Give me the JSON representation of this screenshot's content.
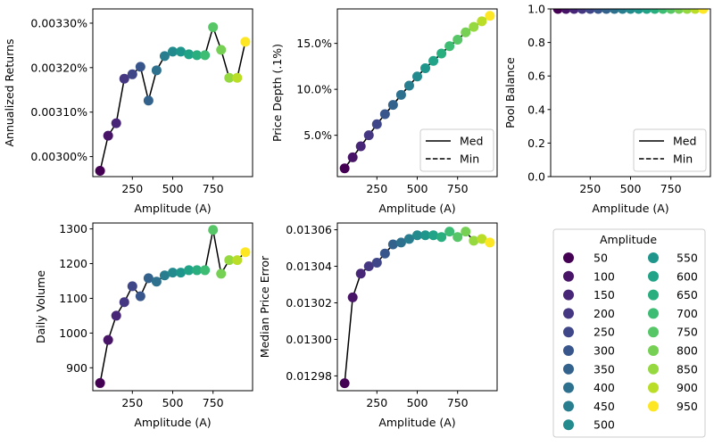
{
  "figure": {
    "legend": {
      "title": "Amplitude",
      "entries": [
        "50",
        "100",
        "150",
        "200",
        "250",
        "300",
        "350",
        "400",
        "450",
        "500",
        "550",
        "600",
        "650",
        "700",
        "750",
        "800",
        "850",
        "900",
        "950"
      ],
      "placement": "bottom-right panel"
    },
    "line_legend": {
      "med_label": "Med",
      "min_label": "Min"
    }
  },
  "chart_data": [
    {
      "type": "line",
      "title": "",
      "xlabel": "Amplitude (A)",
      "ylabel": "Annualized Returns",
      "x": [
        50,
        100,
        150,
        200,
        250,
        300,
        350,
        400,
        450,
        500,
        550,
        600,
        650,
        700,
        750,
        800,
        850,
        900,
        950
      ],
      "series": [
        {
          "name": "Med",
          "values": [
            0.002968,
            0.003047,
            0.003075,
            0.003175,
            0.003185,
            0.003202,
            0.003126,
            0.003194,
            0.003226,
            0.003236,
            0.003236,
            0.00323,
            0.003228,
            0.003228,
            0.003291,
            0.00324,
            0.003177,
            0.003177,
            0.003258
          ]
        }
      ],
      "xlim": [
        5,
        995
      ],
      "ylim": [
        0.002955,
        0.003332
      ],
      "xticks": [
        250,
        500,
        750
      ],
      "xtick_labels": [
        "250",
        "500",
        "750"
      ],
      "yticks": [
        0.003,
        0.0031,
        0.0032,
        0.0033
      ],
      "ytick_labels": [
        "0.00300%",
        "0.00310%",
        "0.00320%",
        "0.00330%"
      ],
      "legend": null,
      "grid": false
    },
    {
      "type": "line",
      "title": "",
      "xlabel": "Amplitude (A)",
      "ylabel": "Price Depth (.1%)",
      "x": [
        50,
        100,
        150,
        200,
        250,
        300,
        350,
        400,
        450,
        500,
        550,
        600,
        650,
        700,
        750,
        800,
        850,
        900,
        950
      ],
      "series": [
        {
          "name": "Med",
          "style": "solid",
          "values": [
            1.4,
            2.6,
            3.8,
            5.0,
            6.2,
            7.3,
            8.3,
            9.4,
            10.4,
            11.4,
            12.3,
            13.1,
            13.9,
            14.7,
            15.4,
            16.2,
            16.8,
            17.4,
            18.0
          ]
        },
        {
          "name": "Min",
          "style": "dashed",
          "values": [
            1.4,
            2.6,
            3.8,
            5.0,
            6.2,
            7.3,
            8.3,
            9.4,
            10.4,
            11.4,
            12.3,
            13.1,
            13.9,
            14.7,
            15.4,
            16.2,
            16.8,
            17.4,
            18.0
          ]
        }
      ],
      "xlim": [
        5,
        995
      ],
      "ylim": [
        0.5,
        18.75
      ],
      "xticks": [
        250,
        500,
        750
      ],
      "xtick_labels": [
        "250",
        "500",
        "750"
      ],
      "yticks": [
        5,
        10,
        15
      ],
      "ytick_labels": [
        "5.0%",
        "10.0%",
        "15.0%"
      ],
      "legend": "lower-right",
      "grid": false
    },
    {
      "type": "line",
      "title": "",
      "xlabel": "Amplitude (A)",
      "ylabel": "Pool Balance",
      "x": [
        50,
        100,
        150,
        200,
        250,
        300,
        350,
        400,
        450,
        500,
        550,
        600,
        650,
        700,
        750,
        800,
        850,
        900,
        950
      ],
      "series": [
        {
          "name": "Med",
          "style": "solid",
          "values": [
            1,
            1,
            1,
            1,
            1,
            1,
            1,
            1,
            1,
            1,
            1,
            1,
            1,
            1,
            1,
            1,
            1,
            1,
            1
          ]
        },
        {
          "name": "Min",
          "style": "dashed",
          "values": [
            1,
            1,
            1,
            1,
            1,
            1,
            1,
            1,
            1,
            1,
            1,
            1,
            1,
            1,
            1,
            1,
            1,
            1,
            1
          ]
        }
      ],
      "xlim": [
        5,
        995
      ],
      "ylim": [
        0,
        1
      ],
      "xticks": [
        250,
        500,
        750
      ],
      "xtick_labels": [
        "250",
        "500",
        "750"
      ],
      "yticks": [
        0,
        0.2,
        0.4,
        0.6,
        0.8,
        1.0
      ],
      "ytick_labels": [
        "0.0",
        "0.2",
        "0.4",
        "0.6",
        "0.8",
        "1.0"
      ],
      "legend": "lower-right",
      "grid": false
    },
    {
      "type": "line",
      "title": "",
      "xlabel": "Amplitude (A)",
      "ylabel": "Daily Volume",
      "x": [
        50,
        100,
        150,
        200,
        250,
        300,
        350,
        400,
        450,
        500,
        550,
        600,
        650,
        700,
        750,
        800,
        850,
        900,
        950
      ],
      "series": [
        {
          "name": "Med",
          "values": [
            856,
            980,
            1050,
            1089,
            1135,
            1106,
            1158,
            1148,
            1166,
            1174,
            1174,
            1181,
            1181,
            1181,
            1297,
            1171,
            1210,
            1210,
            1233
          ]
        }
      ],
      "xlim": [
        5,
        995
      ],
      "ylim": [
        834,
        1317
      ],
      "xticks": [
        250,
        500,
        750
      ],
      "xtick_labels": [
        "250",
        "500",
        "750"
      ],
      "yticks": [
        900,
        1000,
        1100,
        1200,
        1300
      ],
      "ytick_labels": [
        "900",
        "1000",
        "1100",
        "1200",
        "1300"
      ],
      "legend": null,
      "grid": false
    },
    {
      "type": "line",
      "title": "",
      "xlabel": "Amplitude (A)",
      "ylabel": "Median Price Error",
      "x": [
        50,
        100,
        150,
        200,
        250,
        300,
        350,
        400,
        450,
        500,
        550,
        600,
        650,
        700,
        750,
        800,
        850,
        900,
        950
      ],
      "series": [
        {
          "name": "Med",
          "values": [
            0.012976,
            0.013023,
            0.013036,
            0.01304,
            0.013042,
            0.013047,
            0.013052,
            0.013053,
            0.013055,
            0.013057,
            0.013057,
            0.013057,
            0.013056,
            0.013059,
            0.013056,
            0.013059,
            0.013054,
            0.013055,
            0.013053
          ]
        }
      ],
      "xlim": [
        5,
        995
      ],
      "ylim": [
        0.0129719,
        0.0130637
      ],
      "xticks": [
        250,
        500,
        750
      ],
      "xtick_labels": [
        "250",
        "500",
        "750"
      ],
      "yticks": [
        0.01298,
        0.013,
        0.01302,
        0.01304,
        0.01306
      ],
      "ytick_labels": [
        "0.01298",
        "0.01300",
        "0.01302",
        "0.01304",
        "0.01306"
      ],
      "legend": null,
      "grid": false
    }
  ],
  "colors": {
    "line": "#000000",
    "markers": [
      "#440154",
      "#481467",
      "#482677",
      "#453781",
      "#3f4788",
      "#39568c",
      "#33638d",
      "#2d718e",
      "#287d8e",
      "#238a8d",
      "#1f968b",
      "#20a386",
      "#29af7f",
      "#3dbc74",
      "#56c667",
      "#75d054",
      "#95d840",
      "#bade28",
      "#fde725"
    ]
  }
}
